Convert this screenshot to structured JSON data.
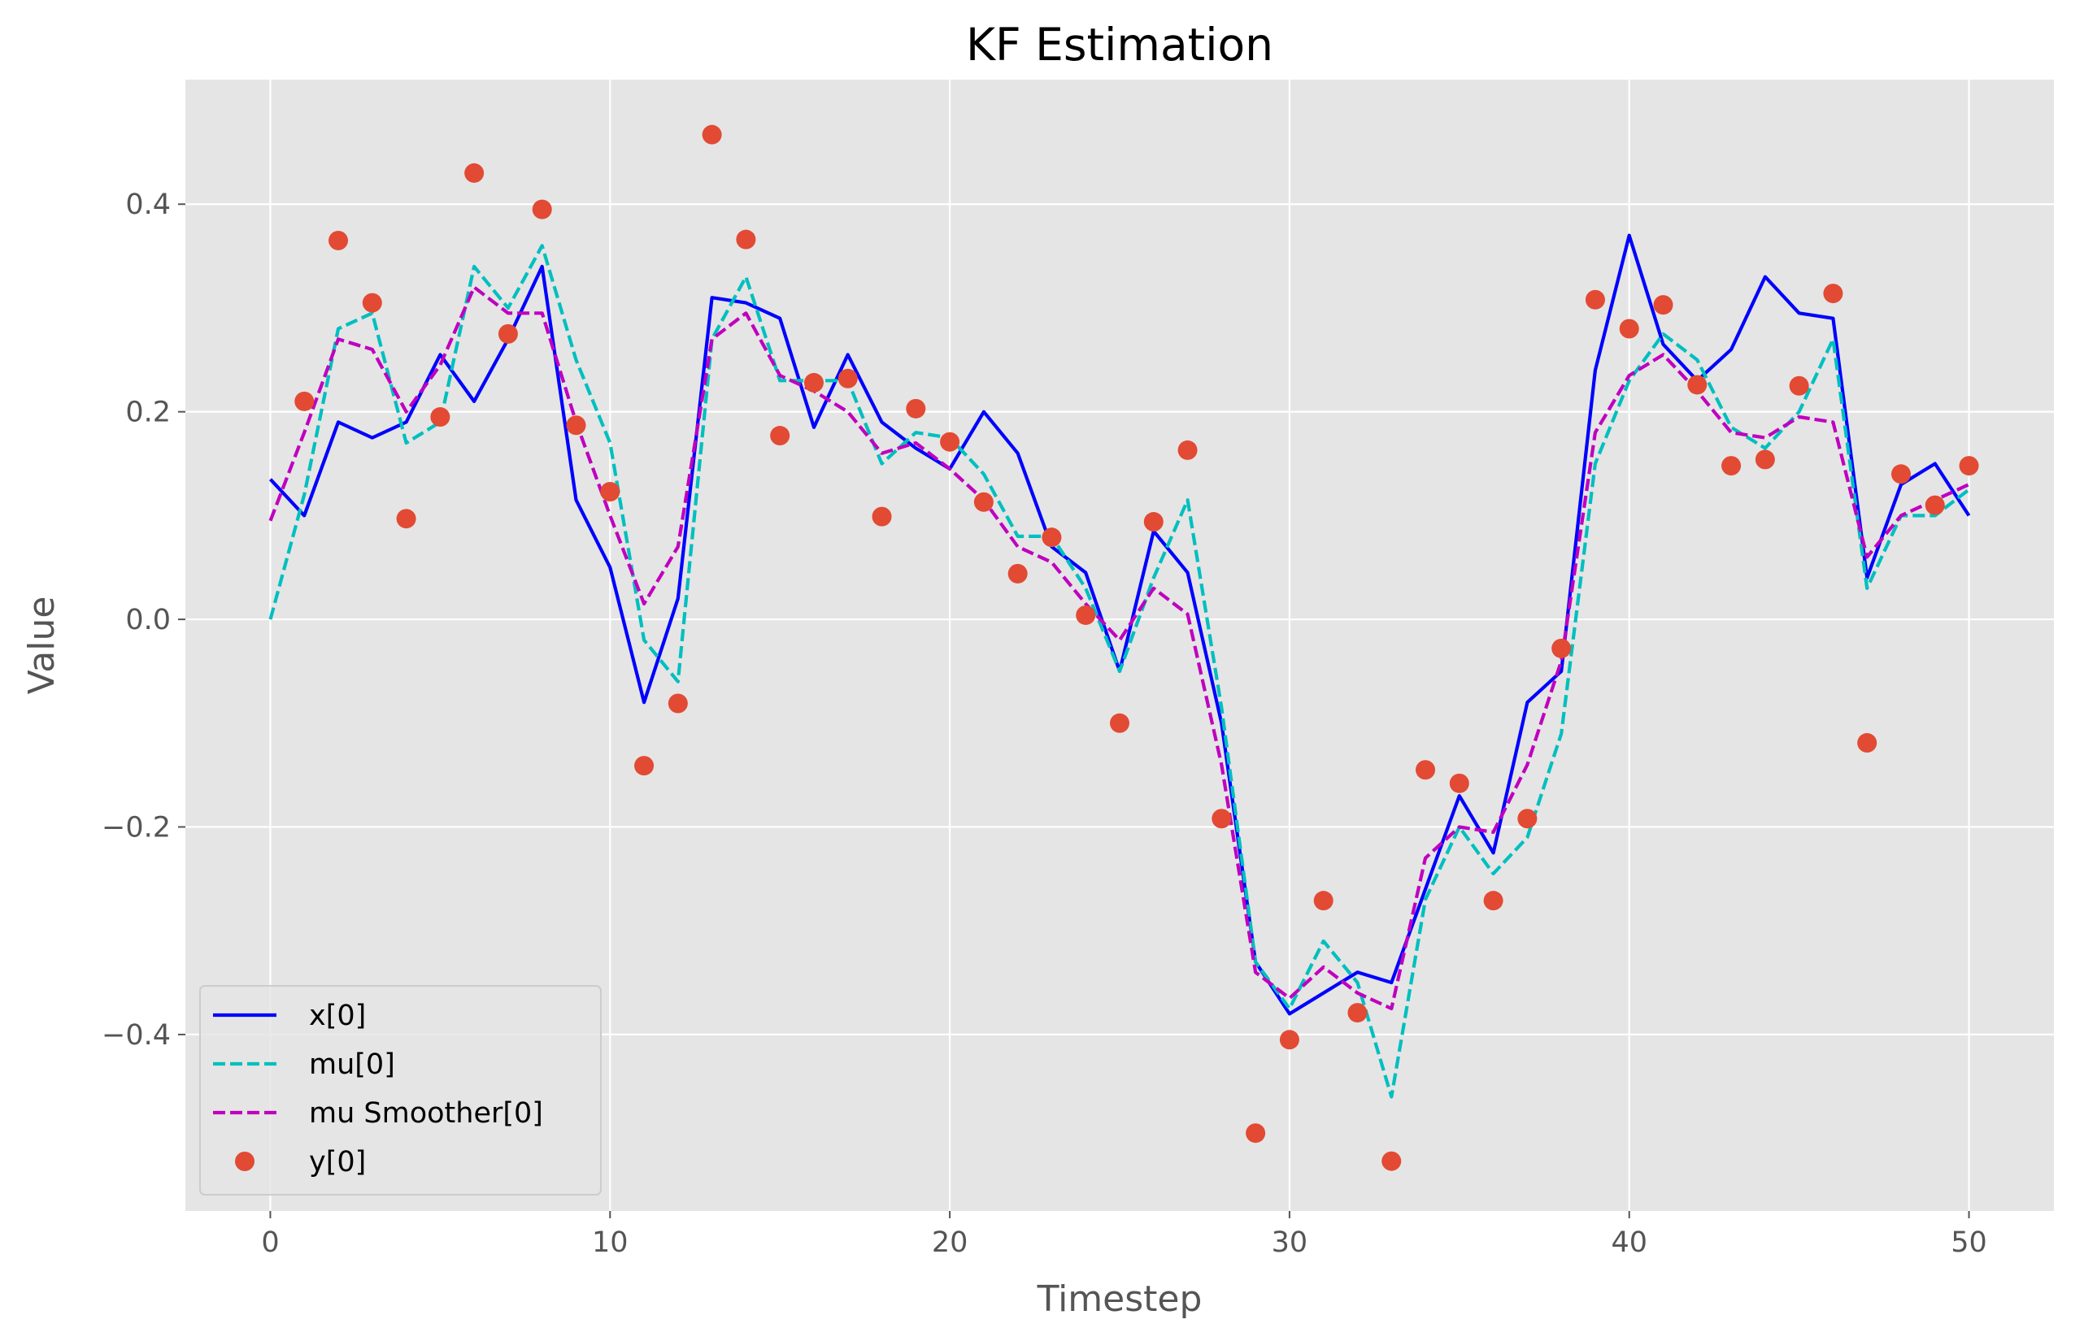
{
  "chart_data": {
    "type": "line",
    "title": "KF Estimation",
    "xlabel": "Timestep",
    "ylabel": "Value",
    "xlim": [
      -2.5,
      52.5
    ],
    "ylim": [
      -0.57,
      0.52
    ],
    "xticks": [
      0,
      10,
      20,
      30,
      40,
      50
    ],
    "yticks": [
      -0.4,
      -0.2,
      0.0,
      0.2,
      0.4
    ],
    "xtick_labels": [
      "0",
      "10",
      "20",
      "30",
      "40",
      "50"
    ],
    "ytick_labels": [
      "−0.4",
      "−0.2",
      "0.0",
      "0.2",
      "0.4"
    ],
    "grid": true,
    "legend_position": "lower-left",
    "x": [
      0,
      1,
      2,
      3,
      4,
      5,
      6,
      7,
      8,
      9,
      10,
      11,
      12,
      13,
      14,
      15,
      16,
      17,
      18,
      19,
      20,
      21,
      22,
      23,
      24,
      25,
      26,
      27,
      28,
      29,
      30,
      31,
      32,
      33,
      34,
      35,
      36,
      37,
      38,
      39,
      40,
      41,
      42,
      43,
      44,
      45,
      46,
      47,
      48,
      49,
      50
    ],
    "series": [
      {
        "name": "x[0]",
        "kind": "line",
        "style": "solid",
        "color": "#0000ff",
        "values": [
          0.135,
          0.1,
          0.19,
          0.175,
          0.19,
          0.255,
          0.21,
          0.27,
          0.34,
          0.115,
          0.05,
          -0.08,
          0.02,
          0.31,
          0.305,
          0.29,
          0.185,
          0.255,
          0.19,
          0.165,
          0.145,
          0.2,
          0.16,
          0.07,
          0.045,
          -0.05,
          0.085,
          0.045,
          -0.1,
          -0.33,
          -0.38,
          -0.36,
          -0.34,
          -0.35,
          -0.26,
          -0.17,
          -0.225,
          -0.08,
          -0.05,
          0.24,
          0.37,
          0.265,
          0.23,
          0.26,
          0.33,
          0.295,
          0.29,
          0.04,
          0.13,
          0.15,
          0.1
        ]
      },
      {
        "name": "mu[0]",
        "kind": "line",
        "style": "dashed",
        "color": "#00bfbf",
        "values": [
          0.0,
          0.12,
          0.28,
          0.295,
          0.17,
          0.19,
          0.34,
          0.3,
          0.36,
          0.25,
          0.17,
          -0.02,
          -0.06,
          0.27,
          0.33,
          0.23,
          0.23,
          0.23,
          0.15,
          0.18,
          0.175,
          0.14,
          0.08,
          0.08,
          0.03,
          -0.05,
          0.04,
          0.115,
          -0.085,
          -0.33,
          -0.375,
          -0.31,
          -0.35,
          -0.46,
          -0.27,
          -0.2,
          -0.245,
          -0.21,
          -0.11,
          0.15,
          0.23,
          0.275,
          0.25,
          0.185,
          0.165,
          0.2,
          0.27,
          0.03,
          0.1,
          0.1,
          0.125
        ]
      },
      {
        "name": "mu Smoother[0]",
        "kind": "line",
        "style": "dashed",
        "color": "#bf00bf",
        "values": [
          0.095,
          0.18,
          0.27,
          0.26,
          0.2,
          0.245,
          0.32,
          0.295,
          0.295,
          0.19,
          0.1,
          0.015,
          0.07,
          0.27,
          0.295,
          0.235,
          0.22,
          0.2,
          0.16,
          0.17,
          0.145,
          0.115,
          0.07,
          0.055,
          0.015,
          -0.02,
          0.03,
          0.005,
          -0.14,
          -0.34,
          -0.365,
          -0.335,
          -0.36,
          -0.375,
          -0.23,
          -0.2,
          -0.205,
          -0.14,
          -0.04,
          0.18,
          0.235,
          0.255,
          0.22,
          0.18,
          0.175,
          0.195,
          0.19,
          0.06,
          0.1,
          0.115,
          0.13
        ]
      },
      {
        "name": "y[0]",
        "kind": "scatter",
        "color": "#e24a33",
        "values": [
          null,
          0.21,
          0.365,
          0.305,
          0.097,
          0.195,
          0.43,
          0.275,
          0.395,
          0.187,
          0.123,
          -0.141,
          -0.081,
          0.467,
          0.366,
          0.177,
          0.228,
          0.232,
          0.099,
          0.203,
          0.171,
          0.113,
          0.044,
          0.079,
          0.004,
          -0.1,
          0.094,
          0.163,
          -0.192,
          -0.495,
          -0.405,
          -0.271,
          -0.379,
          -0.522,
          -0.145,
          -0.158,
          -0.271,
          -0.192,
          -0.028,
          0.308,
          0.28,
          0.303,
          0.226,
          0.148,
          0.154,
          0.225,
          0.314,
          -0.119,
          0.14,
          0.11,
          0.148
        ]
      }
    ]
  }
}
